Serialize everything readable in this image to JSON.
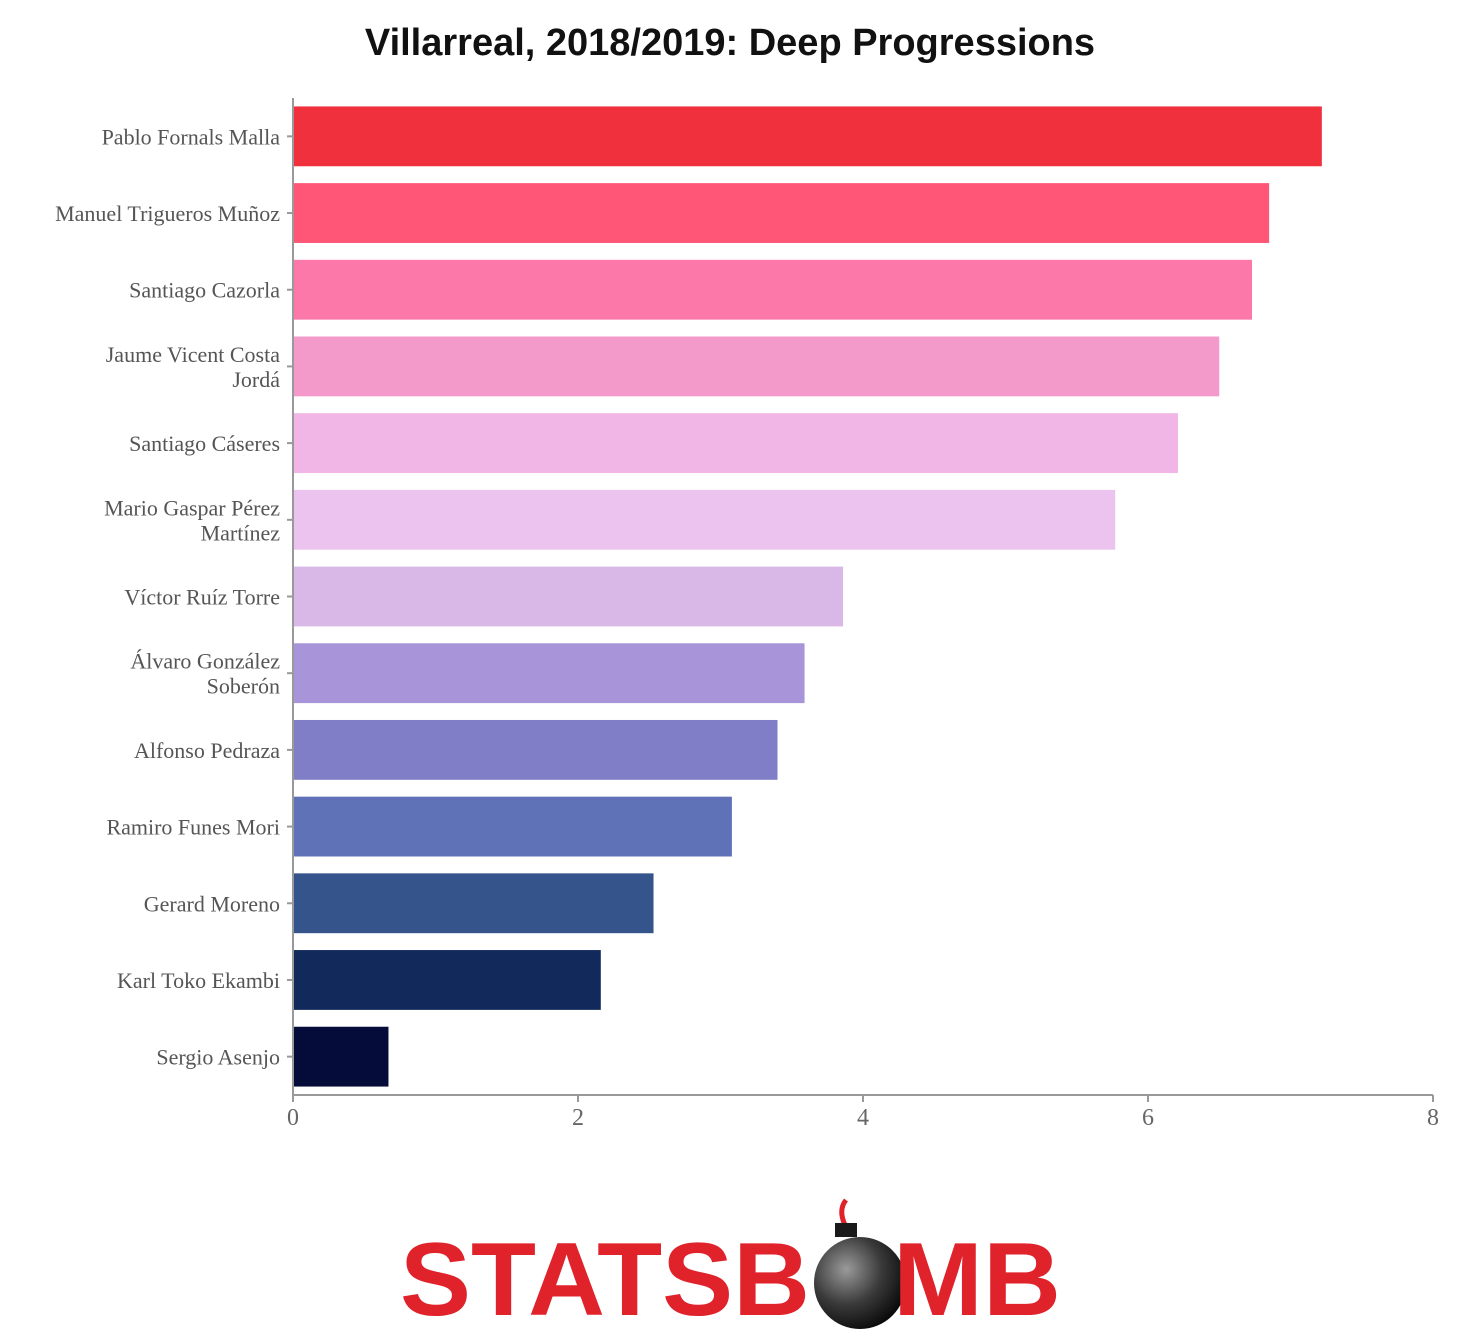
{
  "chart_data": {
    "type": "bar",
    "orientation": "horizontal",
    "title": "Villarreal, 2018/2019: Deep Progressions",
    "xlabel": "",
    "ylabel": "",
    "xlim": [
      0,
      8
    ],
    "xticks": [
      "0",
      "2",
      "4",
      "6",
      "8"
    ],
    "grid": false,
    "categories": [
      "Pablo Fornals Malla",
      "Manuel Trigueros Muñoz",
      "Santiago Cazorla",
      "Jaume Vicent Costa Jordá",
      "Santiago Cáseres",
      "Mario Gaspar Pérez Martínez",
      "Víctor Ruíz Torre",
      "Álvaro González Soberón",
      "Alfonso Pedraza",
      "Ramiro Funes Mori",
      "Gerard Moreno",
      "Karl Toko Ekambi",
      "Sergio Asenjo"
    ],
    "label_lines": [
      [
        "Pablo Fornals Malla"
      ],
      [
        "Manuel Trigueros Muñoz"
      ],
      [
        "Santiago Cazorla"
      ],
      [
        "Jaume Vicent Costa",
        "Jordá"
      ],
      [
        "Santiago Cáseres"
      ],
      [
        "Mario Gaspar Pérez",
        "Martínez"
      ],
      [
        "Víctor Ruíz Torre"
      ],
      [
        "Álvaro González",
        "Soberón"
      ],
      [
        "Alfonso Pedraza"
      ],
      [
        "Ramiro Funes Mori"
      ],
      [
        "Gerard Moreno"
      ],
      [
        "Karl Toko Ekambi"
      ],
      [
        "Sergio Asenjo"
      ]
    ],
    "values": [
      7.22,
      6.85,
      6.73,
      6.5,
      6.21,
      5.77,
      3.86,
      3.59,
      3.4,
      3.08,
      2.53,
      2.16,
      0.67
    ],
    "colors": [
      "#f0313d",
      "#ff5577",
      "#fb78a8",
      "#f49acb",
      "#f1b5e6",
      "#ecc3ef",
      "#d9b7e6",
      "#a894d9",
      "#7f7ec6",
      "#5f72b8",
      "#34548b",
      "#122a5b",
      "#060c3a"
    ]
  },
  "logo": {
    "text_left": "STATSB",
    "text_right": "MB"
  }
}
